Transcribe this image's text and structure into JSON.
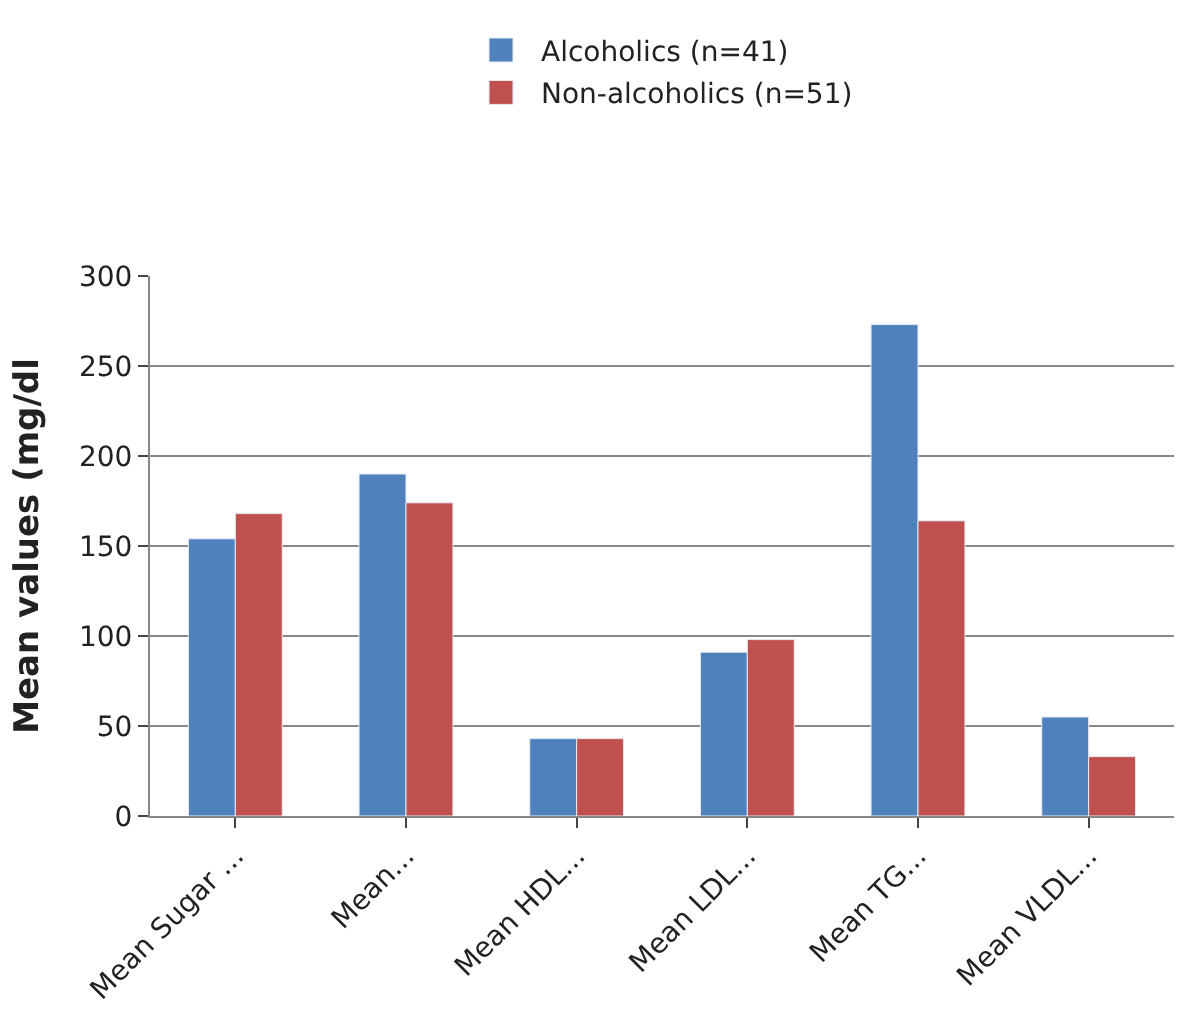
{
  "chart_data": {
    "type": "bar",
    "ylabel": "Mean values (mg/dl",
    "categories": [
      "Mean Sugar ...",
      "Mean...",
      "Mean HDL...",
      "Mean LDL...",
      "Mean TG...",
      "Mean VLDL..."
    ],
    "series": [
      {
        "name": "Alcoholics (n=41)",
        "color": "#4f81bd",
        "values": [
          154,
          190,
          43,
          91,
          273,
          55
        ]
      },
      {
        "name": "Non-alcoholics (n=51)",
        "color": "#c0504d",
        "values": [
          168,
          174,
          43,
          98,
          164,
          33
        ]
      }
    ],
    "ylim": [
      0,
      300
    ],
    "yticks": [
      0,
      50,
      100,
      150,
      200,
      250,
      300
    ],
    "grid": "y",
    "legend": "top"
  }
}
